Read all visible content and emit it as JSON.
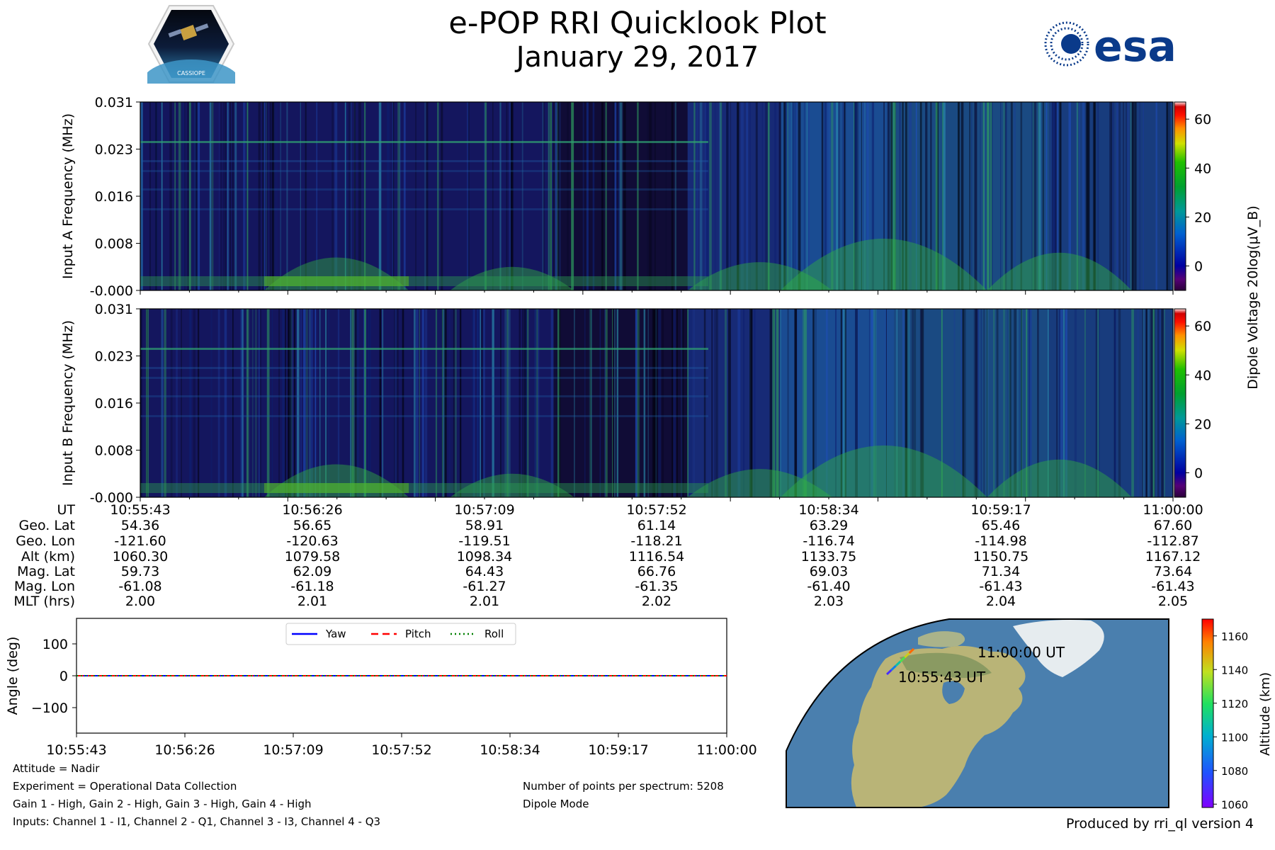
{
  "header": {
    "title": "e-POP RRI Quicklook Plot",
    "date": "January 29, 2017",
    "left_logo_text": "CASSIOPE",
    "right_logo_text": "esa"
  },
  "chart_data": [
    {
      "type": "heatmap",
      "name": "input-a-spectrogram",
      "ylabel": "Input A Frequency (MHz)",
      "yticks": [
        "0.031",
        "0.023",
        "0.016",
        "0.008",
        "-0.000"
      ],
      "ylim": [
        0,
        0.031
      ],
      "colorbar": {
        "label": "Dipole Voltage 20log(μV_B)",
        "ticks": [
          "60",
          "40",
          "20",
          "0"
        ],
        "range": [
          -10,
          67
        ]
      }
    },
    {
      "type": "heatmap",
      "name": "input-b-spectrogram",
      "ylabel": "Input B Frequency (MHz)",
      "yticks": [
        "0.031",
        "0.023",
        "0.016",
        "0.008",
        "-0.000"
      ],
      "ylim": [
        0,
        0.031
      ],
      "colorbar": {
        "label": "Dipole Voltage 20log(μV_B)",
        "ticks": [
          "60",
          "40",
          "20",
          "0"
        ],
        "range": [
          -10,
          67
        ]
      }
    },
    {
      "type": "line",
      "name": "attitude-plot",
      "ylabel": "Angle (deg)",
      "yticks": [
        "100",
        "0",
        "−100"
      ],
      "ylim": [
        -180,
        180
      ],
      "x": [
        "10:55:43",
        "10:56:26",
        "10:57:09",
        "10:57:52",
        "10:58:34",
        "10:59:17",
        "11:00:00"
      ],
      "series": [
        {
          "name": "Yaw",
          "values": [
            0,
            0,
            0,
            0,
            0,
            0,
            0
          ],
          "color": "#0000ff",
          "style": "solid"
        },
        {
          "name": "Pitch",
          "values": [
            0,
            0,
            0,
            0,
            0,
            0,
            0
          ],
          "color": "#ff0000",
          "style": "dashed"
        },
        {
          "name": "Roll",
          "values": [
            0,
            0,
            0,
            0,
            0,
            0,
            0
          ],
          "color": "#008000",
          "style": "dotted"
        }
      ]
    },
    {
      "type": "scatter",
      "name": "orbit-map",
      "colorbar": {
        "label": "Altitude (km)",
        "ticks": [
          "1160",
          "1140",
          "1120",
          "1100",
          "1080",
          "1060"
        ],
        "range": [
          1058,
          1170
        ]
      },
      "track_labels": {
        "start": "10:55:43 UT",
        "end": "11:00:00 UT"
      }
    }
  ],
  "ephemeris": {
    "row_labels": [
      "UT",
      "Geo. Lat",
      "Geo. Lon",
      "Alt (km)",
      "Mag. Lat",
      "Mag. Lon",
      "MLT (hrs)"
    ],
    "columns": [
      [
        "10:55:43",
        "54.36",
        "-121.60",
        "1060.30",
        "59.73",
        "-61.08",
        "2.00"
      ],
      [
        "10:56:26",
        "56.65",
        "-120.63",
        "1079.58",
        "62.09",
        "-61.18",
        "2.01"
      ],
      [
        "10:57:09",
        "58.91",
        "-119.51",
        "1098.34",
        "64.43",
        "-61.27",
        "2.01"
      ],
      [
        "10:57:52",
        "61.14",
        "-118.21",
        "1116.54",
        "66.76",
        "-61.35",
        "2.02"
      ],
      [
        "10:58:34",
        "63.29",
        "-116.74",
        "1133.75",
        "69.03",
        "-61.40",
        "2.03"
      ],
      [
        "10:59:17",
        "65.46",
        "-114.98",
        "1150.75",
        "71.34",
        "-61.43",
        "2.04"
      ],
      [
        "11:00:00",
        "67.60",
        "-112.87",
        "1167.12",
        "73.64",
        "-61.43",
        "2.05"
      ]
    ]
  },
  "info": {
    "attitude": "Attitude = Nadir",
    "experiment": "Experiment = Operational Data Collection",
    "gains": "Gain 1 - High, Gain 2 - High, Gain 3 - High, Gain 4 - High",
    "inputs": "Inputs: Channel 1 - I1, Channel 2 - Q1, Channel 3 - I3, Channel 4 - Q3",
    "points": "Number of points per spectrum: 5208",
    "mode": "Dipole Mode",
    "produced_by": "Produced by rri_ql version 4"
  }
}
